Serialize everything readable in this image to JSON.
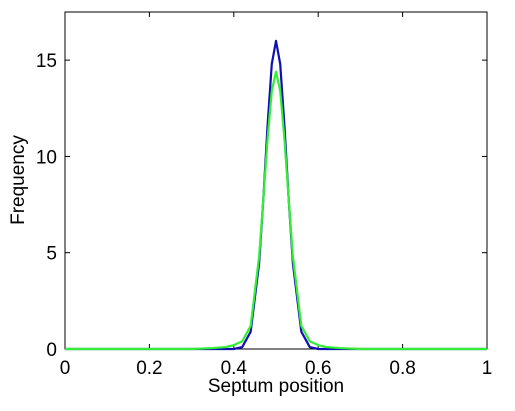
{
  "chart_data": {
    "type": "line",
    "x_label": "Septum position",
    "y_label": "Frequency",
    "x": [
      0,
      0.3,
      0.35,
      0.38,
      0.4,
      0.42,
      0.44,
      0.46,
      0.47,
      0.48,
      0.49,
      0.5,
      0.51,
      0.52,
      0.53,
      0.54,
      0.56,
      0.58,
      0.6,
      0.62,
      0.65,
      0.7,
      1
    ],
    "series": [
      {
        "color": "#1010b0",
        "values": [
          0,
          0,
          0,
          0,
          0,
          0.1,
          0.9,
          4.45,
          7.8,
          11.6,
          14.8,
          16,
          14.8,
          11.6,
          7.8,
          4.45,
          0.9,
          0.1,
          0,
          0,
          0,
          0,
          0
        ]
      },
      {
        "color": "#33ee33",
        "values": [
          0,
          0,
          0.05,
          0.1,
          0.2,
          0.4,
          1.2,
          4.8,
          7.8,
          10.9,
          13.4,
          14.4,
          13.4,
          10.9,
          7.8,
          4.8,
          1.2,
          0.4,
          0.2,
          0.1,
          0.05,
          0,
          0
        ]
      }
    ],
    "xlim": [
      0,
      1
    ],
    "xticks": [
      0,
      0.2,
      0.4,
      0.6,
      0.8,
      1
    ],
    "ylim": [
      0,
      17.5
    ],
    "yticks": [
      0,
      5,
      10,
      15
    ]
  }
}
